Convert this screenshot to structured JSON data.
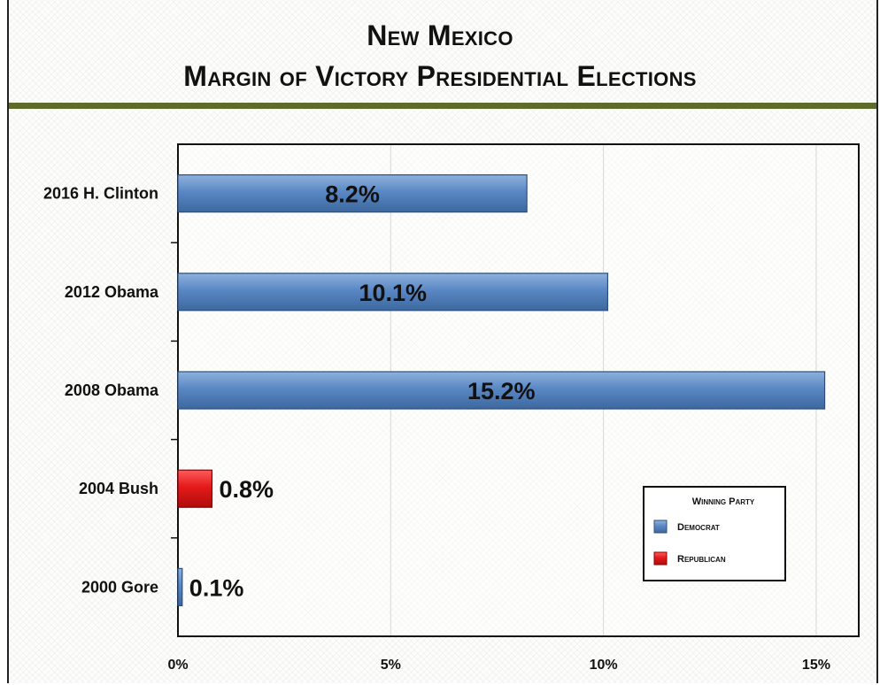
{
  "chart_data": {
    "type": "bar",
    "orientation": "horizontal",
    "title": "New Mexico",
    "subtitle": "Margin of Victory Presidential Elections",
    "categories": [
      "2016 H. Clinton",
      "2012 Obama",
      "2008 Obama",
      "2004 Bush",
      "2000 Gore"
    ],
    "values": [
      8.2,
      10.1,
      15.2,
      0.8,
      0.1
    ],
    "value_labels": [
      "8.2%",
      "10.1%",
      "15.2%",
      "0.8%",
      "0.1%"
    ],
    "party": [
      "Democrat",
      "Democrat",
      "Democrat",
      "Republican",
      "Democrat"
    ],
    "xlim": [
      0,
      16
    ],
    "xticks": [
      0,
      5,
      10,
      15
    ],
    "xtick_labels": [
      "0%",
      "5%",
      "10%",
      "15%"
    ],
    "grid": "vertical",
    "legend": {
      "title": "Winning Party",
      "position": "bottom-right",
      "entries": [
        {
          "name": "Democrat",
          "color": "#4f81bd"
        },
        {
          "name": "Republican",
          "color": "#e41a1a"
        }
      ]
    },
    "colors": {
      "Democrat": "#4f81bd",
      "Republican": "#e41a1a",
      "rule": "#5f6b2a"
    }
  }
}
